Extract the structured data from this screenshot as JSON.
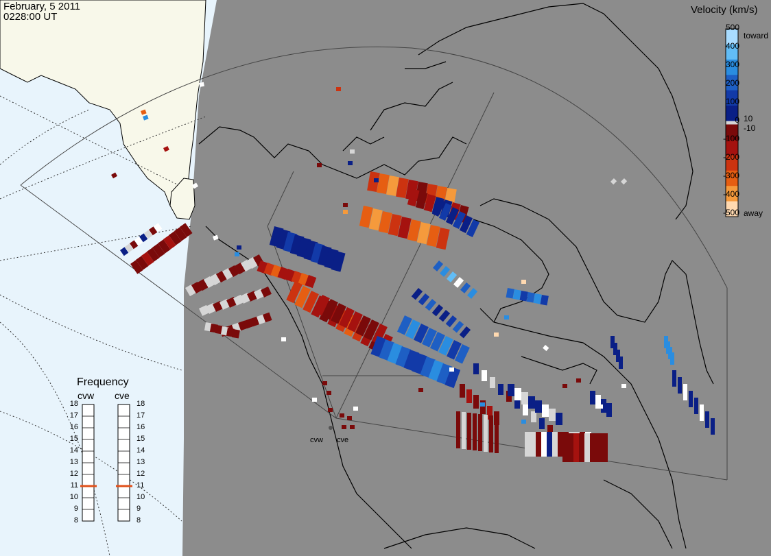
{
  "header": {
    "date": "February, 5 2011",
    "time": "0228:00 UT"
  },
  "velocity_legend": {
    "title": "Velocity (km/s)",
    "ticks": [
      "500",
      "400",
      "300",
      "200",
      "100",
      "0",
      "-100",
      "-200",
      "-300",
      "-400",
      "-500"
    ],
    "inner_ticks": [
      "10",
      "-10"
    ],
    "toward_label": "toward",
    "away_label": "away",
    "colors": [
      "#a9dcff",
      "#62bdf6",
      "#2a8de0",
      "#1e5fc4",
      "#123aa8",
      "#0a1f86",
      "#d6d6d6",
      "#7a0a0a",
      "#a5120f",
      "#cc3310",
      "#e65e12",
      "#f59a3c",
      "#ffd9b0"
    ]
  },
  "frequency_panel": {
    "title": "Frequency",
    "radars": [
      {
        "name": "cvw",
        "frequency_mhz": 11
      },
      {
        "name": "cve",
        "frequency_mhz": 11
      }
    ],
    "scale": [
      "18",
      "17",
      "16",
      "15",
      "14",
      "13",
      "12",
      "11",
      "10",
      "9",
      "8"
    ]
  },
  "sites": [
    {
      "name": "cvw"
    },
    {
      "name": "cve"
    }
  ],
  "colors": {
    "land": "#8c8c8c",
    "night_shade": "#8c8c8c",
    "sunlit_land": "#f8f8ea",
    "sunlit_ocean": "#e8f4fc",
    "freq_marker": "#e0501a"
  }
}
